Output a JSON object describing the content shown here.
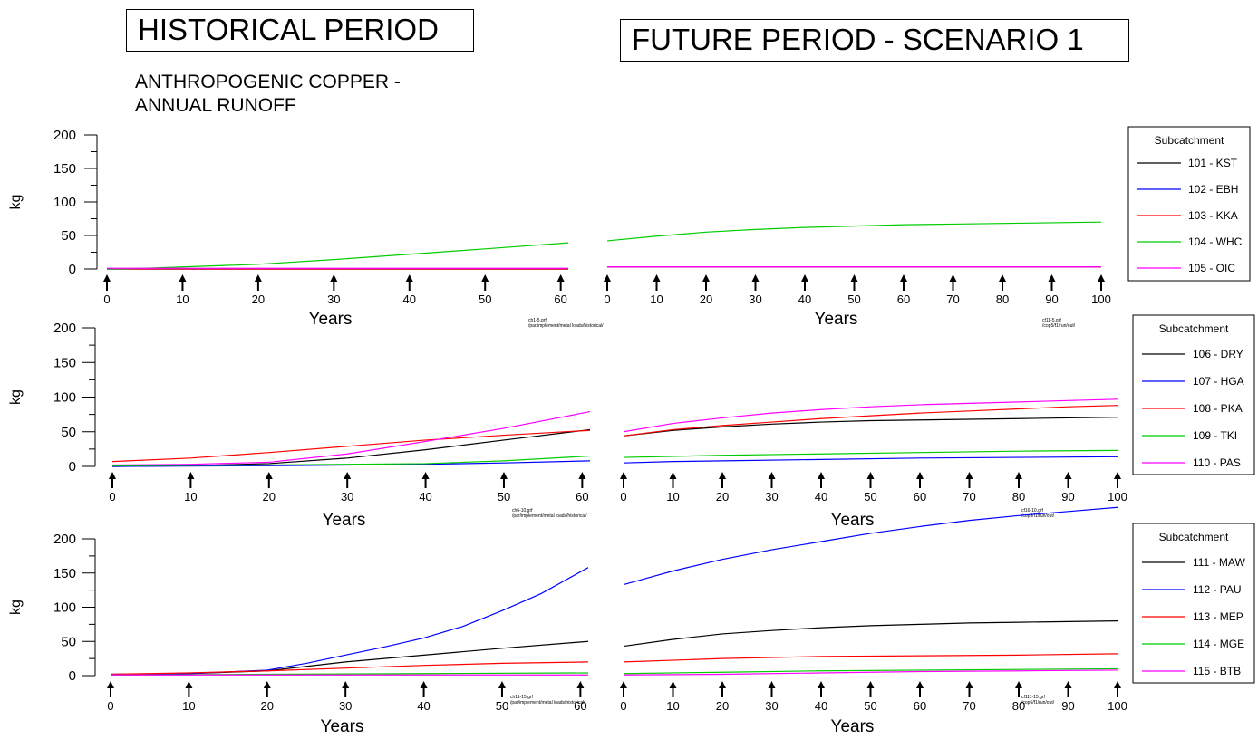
{
  "titles": {
    "historical": "HISTORICAL PERIOD",
    "future": "FUTURE PERIOD - SCENARIO 1",
    "subtitle_line1": "ANTHROPOGENIC COPPER -",
    "subtitle_line2": "ANNUAL RUNOFF"
  },
  "chart_data": [
    {
      "type": "line",
      "xlabel_hist": "Years",
      "xlabel_fut": "Years",
      "ylabel": "kg",
      "ylim": [
        0,
        200
      ],
      "yticks": [
        0,
        50,
        100,
        150,
        200
      ],
      "hist_xticks": [
        0,
        10,
        20,
        30,
        40,
        50,
        60
      ],
      "hist_xlim": [
        0,
        61
      ],
      "fut_xticks": [
        0,
        10,
        20,
        30,
        40,
        50,
        60,
        70,
        80,
        90,
        100
      ],
      "fut_xlim": [
        0,
        100
      ],
      "legend_title": "Subcatchment",
      "legend_position": "right",
      "file_hist": [
        "ch1-5.grf",
        "/par/implement/metal loads/historical/"
      ],
      "file_fut": [
        "cf11-5.grf",
        "/cop5/f1/run/out/"
      ],
      "series": [
        {
          "name": "101 - KST",
          "color": "#000000",
          "hist": [
            [
              0,
              0
            ],
            [
              61,
              0
            ]
          ],
          "fut": [
            [
              0,
              3
            ],
            [
              100,
              3
            ]
          ]
        },
        {
          "name": "102 - EBH",
          "color": "#0000ff",
          "hist": [
            [
              0,
              0
            ],
            [
              61,
              0
            ]
          ],
          "fut": [
            [
              0,
              3
            ],
            [
              100,
              3
            ]
          ]
        },
        {
          "name": "103 - KKA",
          "color": "#ff0000",
          "hist": [
            [
              0,
              0
            ],
            [
              61,
              0
            ]
          ],
          "fut": [
            [
              0,
              3
            ],
            [
              100,
              3
            ]
          ]
        },
        {
          "name": "104 - WHC",
          "color": "#00cc00",
          "hist": [
            [
              0,
              0
            ],
            [
              5,
              1
            ],
            [
              10,
              3
            ],
            [
              20,
              7
            ],
            [
              30,
              14
            ],
            [
              40,
              22
            ],
            [
              50,
              30
            ],
            [
              61,
              39
            ]
          ],
          "fut": [
            [
              0,
              42
            ],
            [
              10,
              49
            ],
            [
              20,
              55
            ],
            [
              30,
              59
            ],
            [
              40,
              62
            ],
            [
              50,
              64
            ],
            [
              60,
              66
            ],
            [
              70,
              67
            ],
            [
              80,
              68
            ],
            [
              90,
              69
            ],
            [
              100,
              70
            ]
          ]
        },
        {
          "name": "105 - OIC",
          "color": "#ff00ff",
          "hist": [
            [
              0,
              1
            ],
            [
              61,
              1
            ]
          ],
          "fut": [
            [
              0,
              3
            ],
            [
              100,
              3
            ]
          ]
        }
      ]
    },
    {
      "type": "line",
      "xlabel_hist": "Years",
      "xlabel_fut": "Years",
      "ylabel": "kg",
      "ylim": [
        0,
        200
      ],
      "yticks": [
        0,
        50,
        100,
        150,
        200
      ],
      "hist_xticks": [
        0,
        10,
        20,
        30,
        40,
        50,
        60
      ],
      "hist_xlim": [
        0,
        61
      ],
      "fut_xticks": [
        0,
        10,
        20,
        30,
        40,
        50,
        60,
        70,
        80,
        90,
        100
      ],
      "fut_xlim": [
        0,
        100
      ],
      "legend_title": "Subcatchment",
      "legend_position": "right",
      "file_hist": [
        "ch6-10.grf",
        "/par/implement/metal loads/historical/"
      ],
      "file_fut": [
        "cf16-10.grf",
        "/cop5/f1/run/out/"
      ],
      "series": [
        {
          "name": "106 - DRY",
          "color": "#000000",
          "hist": [
            [
              0,
              0
            ],
            [
              10,
              1
            ],
            [
              20,
              4
            ],
            [
              30,
              12
            ],
            [
              40,
              24
            ],
            [
              50,
              38
            ],
            [
              61,
              53
            ]
          ],
          "fut": [
            [
              0,
              44
            ],
            [
              10,
              52
            ],
            [
              20,
              57
            ],
            [
              30,
              61
            ],
            [
              40,
              64
            ],
            [
              50,
              66
            ],
            [
              60,
              67
            ],
            [
              70,
              68
            ],
            [
              80,
              69
            ],
            [
              90,
              70
            ],
            [
              100,
              71
            ]
          ]
        },
        {
          "name": "107 - HGA",
          "color": "#0000ff",
          "hist": [
            [
              0,
              0
            ],
            [
              20,
              1
            ],
            [
              40,
              3
            ],
            [
              50,
              5
            ],
            [
              61,
              8
            ]
          ],
          "fut": [
            [
              0,
              5
            ],
            [
              10,
              7
            ],
            [
              20,
              8
            ],
            [
              40,
              10
            ],
            [
              60,
              12
            ],
            [
              80,
              13
            ],
            [
              100,
              14
            ]
          ]
        },
        {
          "name": "108 - PKA",
          "color": "#ff0000",
          "hist": [
            [
              0,
              7
            ],
            [
              10,
              12
            ],
            [
              20,
              20
            ],
            [
              30,
              29
            ],
            [
              40,
              38
            ],
            [
              50,
              45
            ],
            [
              61,
              52
            ]
          ],
          "fut": [
            [
              0,
              44
            ],
            [
              10,
              53
            ],
            [
              20,
              59
            ],
            [
              30,
              64
            ],
            [
              40,
              69
            ],
            [
              50,
              73
            ],
            [
              60,
              77
            ],
            [
              70,
              80
            ],
            [
              80,
              83
            ],
            [
              90,
              86
            ],
            [
              100,
              88
            ]
          ]
        },
        {
          "name": "109 - TKI",
          "color": "#00cc00",
          "hist": [
            [
              0,
              1
            ],
            [
              20,
              2
            ],
            [
              40,
              4
            ],
            [
              50,
              8
            ],
            [
              61,
              15
            ]
          ],
          "fut": [
            [
              0,
              13
            ],
            [
              20,
              16
            ],
            [
              40,
              18
            ],
            [
              60,
              20
            ],
            [
              80,
              22
            ],
            [
              100,
              23
            ]
          ]
        },
        {
          "name": "110 - PAS",
          "color": "#ff00ff",
          "hist": [
            [
              0,
              2
            ],
            [
              10,
              3
            ],
            [
              20,
              6
            ],
            [
              30,
              18
            ],
            [
              40,
              36
            ],
            [
              50,
              55
            ],
            [
              61,
              79
            ]
          ],
          "fut": [
            [
              0,
              50
            ],
            [
              10,
              62
            ],
            [
              20,
              70
            ],
            [
              30,
              77
            ],
            [
              40,
              82
            ],
            [
              50,
              86
            ],
            [
              60,
              89
            ],
            [
              70,
              91
            ],
            [
              80,
              93
            ],
            [
              90,
              95
            ],
            [
              100,
              97
            ]
          ]
        }
      ]
    },
    {
      "type": "line",
      "xlabel_hist": "Years",
      "xlabel_fut": "Years",
      "ylabel": "kg",
      "ylim": [
        0,
        200
      ],
      "yticks": [
        0,
        50,
        100,
        150,
        200
      ],
      "hist_xticks": [
        0,
        10,
        20,
        30,
        40,
        50,
        60
      ],
      "hist_xlim": [
        0,
        61
      ],
      "fut_xticks": [
        0,
        10,
        20,
        30,
        40,
        50,
        60,
        70,
        80,
        90,
        100
      ],
      "fut_xlim": [
        0,
        100
      ],
      "legend_title": "Subcatchment",
      "legend_position": "right",
      "file_hist": [
        "ch11-15.grf",
        "/par/implement/metal loads/historical/"
      ],
      "file_fut": [
        "cf111-15.grf",
        "/cop5/f1/run/out/"
      ],
      "series": [
        {
          "name": "111 - MAW",
          "color": "#000000",
          "hist": [
            [
              0,
              2
            ],
            [
              10,
              3
            ],
            [
              20,
              7
            ],
            [
              30,
              20
            ],
            [
              40,
              30
            ],
            [
              50,
              40
            ],
            [
              61,
              50
            ]
          ],
          "fut": [
            [
              0,
              43
            ],
            [
              10,
              53
            ],
            [
              20,
              61
            ],
            [
              30,
              66
            ],
            [
              40,
              70
            ],
            [
              50,
              73
            ],
            [
              60,
              75
            ],
            [
              70,
              77
            ],
            [
              80,
              78
            ],
            [
              90,
              79
            ],
            [
              100,
              80
            ]
          ]
        },
        {
          "name": "112 - PAU",
          "color": "#0000ff",
          "hist": [
            [
              0,
              2
            ],
            [
              10,
              3
            ],
            [
              20,
              8
            ],
            [
              25,
              18
            ],
            [
              30,
              30
            ],
            [
              35,
              42
            ],
            [
              40,
              55
            ],
            [
              45,
              72
            ],
            [
              50,
              95
            ],
            [
              55,
              120
            ],
            [
              61,
              158
            ]
          ],
          "fut": [
            [
              0,
              133
            ],
            [
              10,
              153
            ],
            [
              20,
              170
            ],
            [
              30,
              184
            ],
            [
              40,
              196
            ],
            [
              50,
              208
            ],
            [
              60,
              218
            ],
            [
              70,
              227
            ],
            [
              80,
              234
            ],
            [
              90,
              240
            ],
            [
              100,
              246
            ]
          ]
        },
        {
          "name": "113 - MEP",
          "color": "#ff0000",
          "hist": [
            [
              0,
              2
            ],
            [
              10,
              4
            ],
            [
              20,
              7
            ],
            [
              30,
              11
            ],
            [
              40,
              15
            ],
            [
              50,
              18
            ],
            [
              61,
              20
            ]
          ],
          "fut": [
            [
              0,
              20
            ],
            [
              20,
              25
            ],
            [
              40,
              28
            ],
            [
              60,
              29
            ],
            [
              80,
              30
            ],
            [
              100,
              32
            ]
          ]
        },
        {
          "name": "114 - MGE",
          "color": "#00cc00",
          "hist": [
            [
              0,
              1
            ],
            [
              20,
              2
            ],
            [
              40,
              3
            ],
            [
              61,
              4
            ]
          ],
          "fut": [
            [
              0,
              3
            ],
            [
              20,
              5
            ],
            [
              40,
              7
            ],
            [
              60,
              8
            ],
            [
              80,
              9
            ],
            [
              100,
              10
            ]
          ]
        },
        {
          "name": "115 - BTB",
          "color": "#ff00ff",
          "hist": [
            [
              0,
              1
            ],
            [
              30,
              1
            ],
            [
              61,
              1
            ]
          ],
          "fut": [
            [
              0,
              1
            ],
            [
              20,
              2
            ],
            [
              40,
              4
            ],
            [
              60,
              6
            ],
            [
              80,
              7
            ],
            [
              100,
              8
            ]
          ]
        }
      ]
    }
  ]
}
